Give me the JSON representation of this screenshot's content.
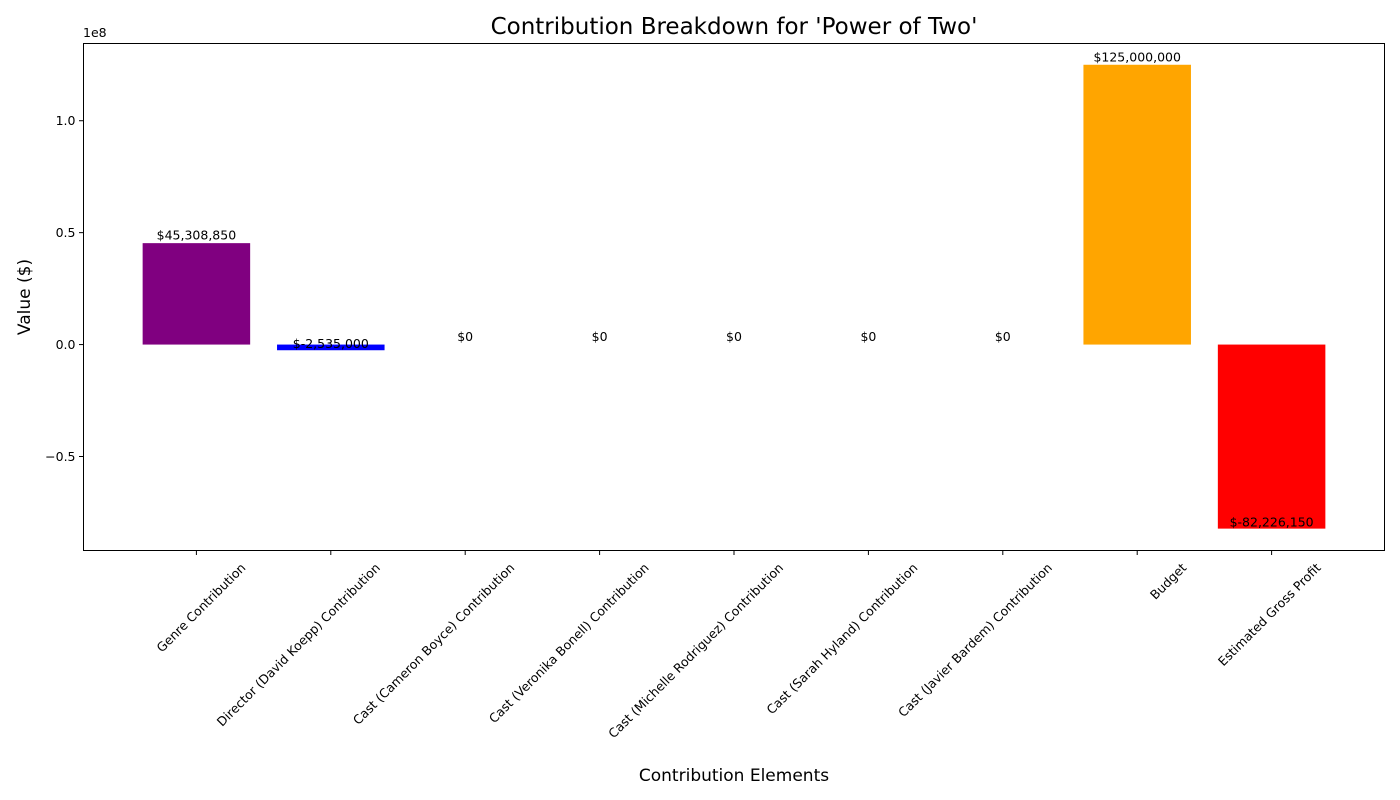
{
  "chart_data": {
    "type": "bar",
    "title": "Contribution Breakdown for 'Power of Two'",
    "xlabel": "Contribution Elements",
    "ylabel": "Value ($)",
    "offset_label": "1e8",
    "ylim": [
      -92000000,
      134500000
    ],
    "yticks": [
      -50000000,
      0,
      50000000,
      100000000
    ],
    "ytick_labels": [
      "−0.5",
      "0.0",
      "0.5",
      "1.0"
    ],
    "categories": [
      "Genre Contribution",
      "Director (David Koepp) Contribution",
      "Cast (Cameron Boyce) Contribution",
      "Cast (Veronika Bonell) Contribution",
      "Cast (Michelle Rodriguez) Contribution",
      "Cast (Sarah Hyland) Contribution",
      "Cast (Javier Bardem) Contribution",
      "Budget",
      "Estimated Gross Profit"
    ],
    "values": [
      45308850,
      -2535000,
      0,
      0,
      0,
      0,
      0,
      125000000,
      -82226150
    ],
    "value_labels": [
      "$45,308,850",
      "$-2,535,000",
      "$0",
      "$0",
      "$0",
      "$0",
      "$0",
      "$125,000,000",
      "$-82,226,150"
    ],
    "colors": [
      "#800080",
      "#0000ff",
      "#00ff00",
      "#00ffff",
      "#ff00ff",
      "#ffff00",
      "#808080",
      "#ffa500",
      "#ff0000"
    ],
    "grid": false,
    "legend": "none"
  }
}
